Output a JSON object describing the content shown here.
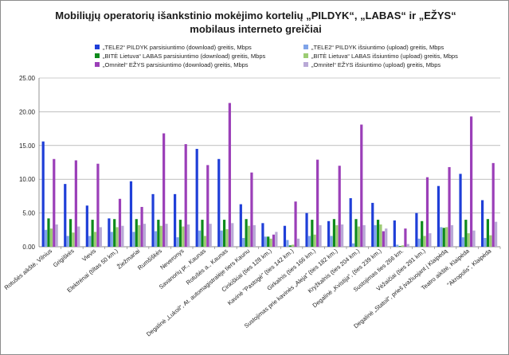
{
  "chart_data": {
    "type": "bar",
    "title": "Mobiliųjų operatorių išankstinio mokėjimo kortelių „PILDYK“, „LABAS“ ir „EŽYS“ mobilaus interneto greičiai",
    "xlabel": "",
    "ylabel": "",
    "ylim": [
      0,
      25
    ],
    "yticks": [
      "0.00",
      "5.00",
      "10.00",
      "15.00",
      "20.00",
      "25.00"
    ],
    "grid": true,
    "legend_position": "top",
    "categories": [
      "Rotušės aikštė, Vilnius",
      "Grigiškės",
      "Vievis",
      "Elektrėnai (tiltas 50 km.)",
      "Žiežmariai",
      "Rumšiškės",
      "Neveronys",
      "Savanorių pr., Kaunas",
      "Rotušės a., Kaunas",
      "Degalinė „Lukoil“, At. automagistralėje tiers Kaunu",
      "Cinkiškiai (ties 128 km.)",
      "Kavinė \"Pastogė\" (ties 142 km.)",
      "Girkalnis (ties 166 km.)",
      "Sustojimas prie kavinės „Aleja“ (ties 182 km.)",
      "Kryžkalnis (ties 204 km.)",
      "Degalinė „Kvistija“, (ties 239 km.)",
      "Sustojimas ties 266 km.",
      "Vėžaičiai (ties 291 km.)",
      "Degalinė „Statoil“, prieš įvažiuojant į Klaipėdą",
      "Teatro aikštė, Klaipėda",
      "\"Akropolis\", Klaipėda"
    ],
    "series": [
      {
        "name": "„TELE2“ PILDYK parsisiuntimo (download) greitis, Mbps",
        "color": "#1f3fd8",
        "values": [
          15.6,
          9.3,
          6.1,
          4.2,
          9.7,
          7.8,
          7.8,
          14.5,
          13.0,
          6.3,
          3.5,
          3.1,
          5.0,
          3.8,
          7.2,
          6.5,
          3.9,
          5.0,
          9.0,
          10.8,
          6.9
        ]
      },
      {
        "name": "„TELE2“ PILDYK išsiuntimo (upload) greitis, Mbps",
        "color": "#7fa3e8",
        "values": [
          2.5,
          1.6,
          1.6,
          2.2,
          2.2,
          2.3,
          1.4,
          2.4,
          2.4,
          1.3,
          1.5,
          1.0,
          1.6,
          1.6,
          0.5,
          3.2,
          0.3,
          1.2,
          2.9,
          1.4,
          1.3
        ]
      },
      {
        "name": "„BITĖ Lietuva“ LABAS parsisiuntimo (download) greitis, Mbps",
        "color": "#0e8a1c",
        "values": [
          4.2,
          4.1,
          4.0,
          4.1,
          4.1,
          4.0,
          4.0,
          4.0,
          4.0,
          4.1,
          1.5,
          0.2,
          4.0,
          4.1,
          4.1,
          4.0,
          0.1,
          3.8,
          2.8,
          4.0,
          4.1
        ]
      },
      {
        "name": "„BITĖ Lietuva“ LABAS išsiuntimo (upload) greitis, Mbps",
        "color": "#9ccc73",
        "values": [
          2.7,
          2.1,
          2.2,
          2.9,
          3.2,
          3.1,
          3.0,
          1.6,
          2.6,
          3.1,
          1.2,
          0.3,
          1.8,
          3.2,
          3.0,
          3.3,
          0.2,
          1.6,
          2.9,
          2.0,
          1.7
        ]
      },
      {
        "name": "„Omnitel“ EŽYS parsisiuntimo (download) greitis, Mbps",
        "color": "#9b3fb8",
        "values": [
          13.0,
          12.8,
          12.3,
          7.1,
          5.9,
          16.8,
          15.2,
          12.1,
          21.3,
          11.0,
          1.8,
          6.7,
          12.9,
          12.0,
          18.1,
          2.3,
          2.7,
          10.3,
          11.8,
          19.3,
          12.4
        ]
      },
      {
        "name": "„Omnitel“ EŽYS išsiuntimo (upload) greitis, Mbps",
        "color": "#b9a9d6",
        "values": [
          3.3,
          3.0,
          2.9,
          3.1,
          3.4,
          3.4,
          3.3,
          3.4,
          3.5,
          3.2,
          2.2,
          1.2,
          3.2,
          3.3,
          3.2,
          2.7,
          0.4,
          2.0,
          3.2,
          2.4,
          3.7
        ]
      }
    ]
  }
}
